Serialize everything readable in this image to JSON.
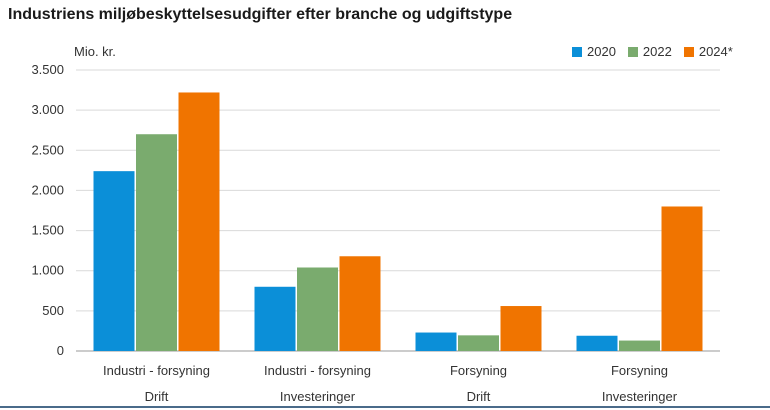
{
  "chart_data": {
    "type": "bar",
    "title": "Industriens miljøbeskyttelsesudgifter efter branche og udgiftstype",
    "ylabel": "Mio. kr.",
    "xlabel": "",
    "ylim": [
      0,
      3500
    ],
    "yticks": [
      0,
      500,
      1000,
      1500,
      2000,
      2500,
      3000,
      3500
    ],
    "ytick_labels": [
      "0",
      "500",
      "1.000",
      "1.500",
      "2.000",
      "2.500",
      "3.000",
      "3.500"
    ],
    "categories": [
      {
        "label": "Industri - forsyning",
        "sublabel": "Drift"
      },
      {
        "label": "Industri - forsyning",
        "sublabel": "Investeringer"
      },
      {
        "label": "Forsyning",
        "sublabel": "Drift"
      },
      {
        "label": "Forsyning",
        "sublabel": "Investeringer"
      }
    ],
    "series": [
      {
        "name": "2020",
        "color": "#0b8fd8",
        "values": [
          2240,
          800,
          230,
          190
        ]
      },
      {
        "name": "2022",
        "color": "#7aab6e",
        "values": [
          2700,
          1040,
          195,
          130
        ]
      },
      {
        "name": "2024*",
        "color": "#f07400",
        "values": [
          3220,
          1180,
          560,
          1800
        ]
      }
    ],
    "grid": true,
    "legend_position": "top-right"
  }
}
